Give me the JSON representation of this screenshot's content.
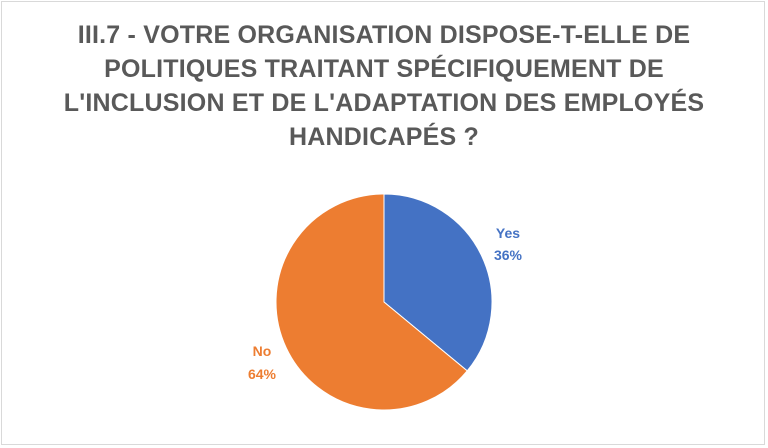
{
  "chart_data": {
    "type": "pie",
    "title_lines": [
      "III.7 - VOTRE ORGANISATION DISPOSE-T-ELLE DE",
      "POLITIQUES TRAITANT SPÉCIFIQUEMENT DE",
      "L'INCLUSION ET DE L'ADAPTATION DES EMPLOYÉS",
      "HANDICAPÉS ?"
    ],
    "slices": [
      {
        "label": "Yes",
        "value": 36,
        "value_label": "36%",
        "color": "#4472c4"
      },
      {
        "label": "No",
        "value": 64,
        "value_label": "64%",
        "color": "#ed7d31"
      }
    ],
    "start_angle": "12 o'clock",
    "direction": "clockwise",
    "legend": "none"
  }
}
